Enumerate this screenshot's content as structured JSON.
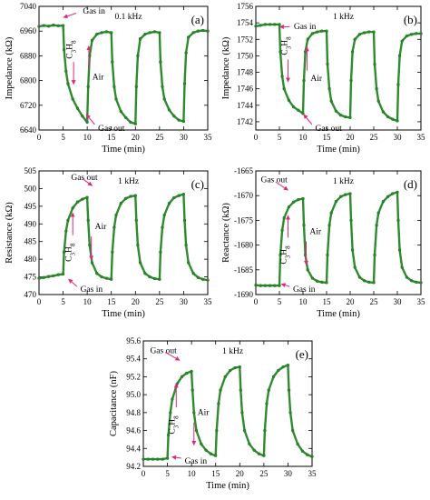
{
  "colors": {
    "series": "#2e8b2e",
    "marker": "#1f7a1f",
    "annotation": "#e0287a"
  },
  "chart_data": [
    {
      "type": "line",
      "label": "(a)",
      "frequency": "0.1 kHz",
      "xlabel": "Time (min)",
      "ylabel": "Impedance (kΩ)",
      "xlim": [
        0,
        35
      ],
      "ylim": [
        6640,
        7040
      ],
      "xticks": [
        "0",
        "5",
        "10",
        "15",
        "20",
        "25",
        "30",
        "35"
      ],
      "yticks": [
        "6640",
        "6720",
        "6800",
        "6880",
        "6960",
        "7040"
      ],
      "annotations": {
        "gas_in": "Gas in",
        "gas_out": "Gas out",
        "gas": "C3H8",
        "air": "Air"
      },
      "series": [
        {
          "points": [
            [
              0,
              6975
            ],
            [
              1,
              6978
            ],
            [
              2,
              6976
            ],
            [
              3,
              6979
            ],
            [
              4,
              6977
            ],
            [
              5,
              6978
            ],
            [
              5.2,
              6900
            ],
            [
              5.6,
              6830
            ],
            [
              6,
              6790
            ],
            [
              7,
              6740
            ],
            [
              8,
              6710
            ],
            [
              9,
              6685
            ],
            [
              10,
              6665
            ],
            [
              10.2,
              6780
            ],
            [
              10.5,
              6880
            ],
            [
              11,
              6930
            ],
            [
              12,
              6950
            ],
            [
              13,
              6955
            ],
            [
              14,
              6958
            ],
            [
              15,
              6955
            ],
            [
              15.2,
              6860
            ],
            [
              15.6,
              6780
            ],
            [
              16,
              6740
            ],
            [
              17,
              6700
            ],
            [
              18,
              6680
            ],
            [
              19,
              6665
            ],
            [
              20,
              6660
            ],
            [
              20.2,
              6780
            ],
            [
              20.5,
              6880
            ],
            [
              21,
              6935
            ],
            [
              22,
              6950
            ],
            [
              23,
              6955
            ],
            [
              24,
              6958
            ],
            [
              25,
              6955
            ],
            [
              25.2,
              6860
            ],
            [
              25.6,
              6780
            ],
            [
              26,
              6740
            ],
            [
              27,
              6705
            ],
            [
              28,
              6685
            ],
            [
              29,
              6672
            ],
            [
              30,
              6668
            ],
            [
              30.2,
              6790
            ],
            [
              30.5,
              6890
            ],
            [
              31,
              6940
            ],
            [
              32,
              6955
            ],
            [
              33,
              6960
            ],
            [
              34,
              6962
            ],
            [
              35,
              6960
            ]
          ]
        }
      ]
    },
    {
      "type": "line",
      "label": "(b)",
      "frequency": "1 kHz",
      "xlabel": "Time (min)",
      "ylabel": "Impedance (kΩ)",
      "xlim": [
        0,
        35
      ],
      "ylim": [
        1741,
        1756
      ],
      "xticks": [
        "0",
        "5",
        "10",
        "15",
        "20",
        "25",
        "30",
        "35"
      ],
      "yticks": [
        "1742",
        "1744",
        "1746",
        "1748",
        "1750",
        "1752",
        "1754",
        "1756"
      ],
      "annotations": {
        "gas_in": "Gas in",
        "gas_out": "Gas out",
        "gas": "C3H8",
        "air": "Air"
      },
      "series": [
        {
          "points": [
            [
              0,
              1753.6
            ],
            [
              1,
              1753.7
            ],
            [
              2,
              1753.8
            ],
            [
              3,
              1753.8
            ],
            [
              4,
              1753.8
            ],
            [
              5,
              1753.8
            ],
            [
              5.2,
              1750.5
            ],
            [
              5.6,
              1747.5
            ],
            [
              6,
              1746
            ],
            [
              7,
              1744.6
            ],
            [
              8,
              1743.8
            ],
            [
              9,
              1743.4
            ],
            [
              10,
              1743.0
            ],
            [
              10.2,
              1747
            ],
            [
              10.5,
              1750.5
            ],
            [
              11,
              1752
            ],
            [
              12,
              1752.7
            ],
            [
              13,
              1752.9
            ],
            [
              14,
              1753
            ],
            [
              15,
              1753
            ],
            [
              15.2,
              1749
            ],
            [
              15.6,
              1746
            ],
            [
              16,
              1744.5
            ],
            [
              17,
              1743.3
            ],
            [
              18,
              1742.8
            ],
            [
              19,
              1742.6
            ],
            [
              20,
              1742.5
            ],
            [
              20.2,
              1747
            ],
            [
              20.5,
              1750.5
            ],
            [
              21,
              1752
            ],
            [
              22,
              1752.6
            ],
            [
              23,
              1752.8
            ],
            [
              24,
              1752.9
            ],
            [
              25,
              1752.9
            ],
            [
              25.2,
              1749
            ],
            [
              25.6,
              1746
            ],
            [
              26,
              1744.5
            ],
            [
              27,
              1743.2
            ],
            [
              28,
              1742.6
            ],
            [
              29,
              1742.3
            ],
            [
              30,
              1742.1
            ],
            [
              30.2,
              1746.5
            ],
            [
              30.5,
              1750
            ],
            [
              31,
              1751.8
            ],
            [
              32,
              1752.4
            ],
            [
              33,
              1752.6
            ],
            [
              34,
              1752.7
            ],
            [
              35,
              1752.7
            ]
          ]
        }
      ]
    },
    {
      "type": "line",
      "label": "(c)",
      "frequency": "1 kHz",
      "xlabel": "Time (min)",
      "ylabel": "Resistance (kΩ)",
      "xlim": [
        0,
        35
      ],
      "ylim": [
        470,
        505
      ],
      "xticks": [
        "0",
        "5",
        "10",
        "15",
        "20",
        "25",
        "30",
        "35"
      ],
      "yticks": [
        "470",
        "475",
        "480",
        "485",
        "490",
        "495",
        "500",
        "505"
      ],
      "annotations": {
        "gas_in": "Gas in",
        "gas_out": "Gas out",
        "gas": "C3H8",
        "air": "Air"
      },
      "series": [
        {
          "points": [
            [
              0,
              474.6
            ],
            [
              1,
              474.8
            ],
            [
              2,
              475.1
            ],
            [
              3,
              475.3
            ],
            [
              4,
              475.6
            ],
            [
              5,
              475.8
            ],
            [
              5.2,
              482
            ],
            [
              5.6,
              488
            ],
            [
              6,
              491
            ],
            [
              7,
              494.5
            ],
            [
              8,
              496.2
            ],
            [
              9,
              497
            ],
            [
              10,
              497.5
            ],
            [
              10.2,
              491
            ],
            [
              10.5,
              484
            ],
            [
              11,
              479
            ],
            [
              12,
              476
            ],
            [
              13,
              475
            ],
            [
              14,
              474.6
            ],
            [
              15,
              474.3
            ],
            [
              15.2,
              482
            ],
            [
              15.6,
              489
            ],
            [
              16,
              492.5
            ],
            [
              17,
              495.8
            ],
            [
              18,
              497.2
            ],
            [
              19,
              497.8
            ],
            [
              20,
              498
            ],
            [
              20.2,
              491
            ],
            [
              20.5,
              484
            ],
            [
              21,
              479
            ],
            [
              22,
              476
            ],
            [
              23,
              475
            ],
            [
              24,
              474.5
            ],
            [
              25,
              474.3
            ],
            [
              25.2,
              482
            ],
            [
              25.6,
              489
            ],
            [
              26,
              492.5
            ],
            [
              27,
              495.8
            ],
            [
              28,
              497.4
            ],
            [
              29,
              498
            ],
            [
              30,
              498.4
            ],
            [
              30.2,
              491
            ],
            [
              30.5,
              484
            ],
            [
              31,
              479
            ],
            [
              32,
              476
            ],
            [
              33,
              474.8
            ],
            [
              34,
              474.3
            ],
            [
              35,
              474.1
            ]
          ]
        }
      ]
    },
    {
      "type": "line",
      "label": "(d)",
      "frequency": "1 kHz",
      "xlabel": "Time (min)",
      "ylabel": "Reactance (kΩ)",
      "xlim": [
        0,
        35
      ],
      "ylim": [
        -1690,
        -1665
      ],
      "xticks": [
        "0",
        "5",
        "10",
        "15",
        "20",
        "25",
        "30",
        "35"
      ],
      "yticks": [
        "-1690",
        "-1685",
        "-1680",
        "-1675",
        "-1670",
        "-1665"
      ],
      "annotations": {
        "gas_in": "Gas in",
        "gas_out": "Gas out",
        "gas": "C3H8",
        "air": "Air"
      },
      "series": [
        {
          "points": [
            [
              0,
              -1688.1
            ],
            [
              1,
              -1688.2
            ],
            [
              2,
              -1688.2
            ],
            [
              3,
              -1688.2
            ],
            [
              4,
              -1688.2
            ],
            [
              5,
              -1688.2
            ],
            [
              5.2,
              -1682
            ],
            [
              5.6,
              -1677
            ],
            [
              6,
              -1674.5
            ],
            [
              7,
              -1672.3
            ],
            [
              8,
              -1671.3
            ],
            [
              9,
              -1670.8
            ],
            [
              10,
              -1670.6
            ],
            [
              10.2,
              -1676
            ],
            [
              10.5,
              -1682
            ],
            [
              11,
              -1685
            ],
            [
              12,
              -1686.7
            ],
            [
              13,
              -1687.3
            ],
            [
              14,
              -1687.5
            ],
            [
              15,
              -1687.6
            ],
            [
              15.2,
              -1682
            ],
            [
              15.6,
              -1676
            ],
            [
              16,
              -1673.5
            ],
            [
              17,
              -1671.2
            ],
            [
              18,
              -1670.2
            ],
            [
              19,
              -1669.8
            ],
            [
              20,
              -1669.6
            ],
            [
              20.2,
              -1675
            ],
            [
              20.5,
              -1681
            ],
            [
              21,
              -1684.5
            ],
            [
              22,
              -1686.5
            ],
            [
              23,
              -1687.2
            ],
            [
              24,
              -1687.5
            ],
            [
              25,
              -1687.6
            ],
            [
              25.2,
              -1682
            ],
            [
              25.6,
              -1676
            ],
            [
              26,
              -1673.5
            ],
            [
              27,
              -1671.2
            ],
            [
              28,
              -1670.2
            ],
            [
              29,
              -1669.6
            ],
            [
              30,
              -1669.3
            ],
            [
              30.2,
              -1675
            ],
            [
              30.5,
              -1681
            ],
            [
              31,
              -1684.5
            ],
            [
              32,
              -1686.5
            ],
            [
              33,
              -1687.2
            ],
            [
              34,
              -1687.5
            ],
            [
              35,
              -1687.6
            ]
          ]
        }
      ]
    },
    {
      "type": "line",
      "label": "(e)",
      "frequency": "1 kHz",
      "xlabel": "Time (min)",
      "ylabel": "Capacitance (nF)",
      "xlim": [
        0,
        35
      ],
      "ylim": [
        94.2,
        95.6
      ],
      "xticks": [
        "0",
        "5",
        "10",
        "15",
        "20",
        "25",
        "30",
        "35"
      ],
      "yticks": [
        "94.2",
        "94.4",
        "94.6",
        "94.8",
        "95.0",
        "95.2",
        "95.4",
        "95.6"
      ],
      "annotations": {
        "gas_in": "Gas in",
        "gas_out": "Gas out",
        "gas": "C3H8",
        "air": "Air"
      },
      "series": [
        {
          "points": [
            [
              0,
              94.28
            ],
            [
              1,
              94.28
            ],
            [
              2,
              94.28
            ],
            [
              3,
              94.28
            ],
            [
              4,
              94.28
            ],
            [
              5,
              94.29
            ],
            [
              5.2,
              94.55
            ],
            [
              5.6,
              94.8
            ],
            [
              6,
              94.95
            ],
            [
              7,
              95.12
            ],
            [
              8,
              95.2
            ],
            [
              9,
              95.24
            ],
            [
              10,
              95.26
            ],
            [
              10.2,
              95.05
            ],
            [
              10.5,
              94.8
            ],
            [
              11,
              94.6
            ],
            [
              12,
              94.45
            ],
            [
              13,
              94.38
            ],
            [
              14,
              94.34
            ],
            [
              15,
              94.32
            ],
            [
              15.2,
              94.6
            ],
            [
              15.6,
              94.9
            ],
            [
              16,
              95.05
            ],
            [
              17,
              95.2
            ],
            [
              18,
              95.27
            ],
            [
              19,
              95.3
            ],
            [
              20,
              95.31
            ],
            [
              20.2,
              95.05
            ],
            [
              20.5,
              94.8
            ],
            [
              21,
              94.6
            ],
            [
              22,
              94.45
            ],
            [
              23,
              94.38
            ],
            [
              24,
              94.34
            ],
            [
              25,
              94.32
            ],
            [
              25.2,
              94.6
            ],
            [
              25.6,
              94.9
            ],
            [
              26,
              95.05
            ],
            [
              27,
              95.2
            ],
            [
              28,
              95.27
            ],
            [
              29,
              95.31
            ],
            [
              30,
              95.33
            ],
            [
              30.2,
              95.05
            ],
            [
              30.5,
              94.8
            ],
            [
              31,
              94.6
            ],
            [
              32,
              94.45
            ],
            [
              33,
              94.37
            ],
            [
              34,
              94.33
            ],
            [
              35,
              94.31
            ]
          ]
        }
      ]
    }
  ]
}
